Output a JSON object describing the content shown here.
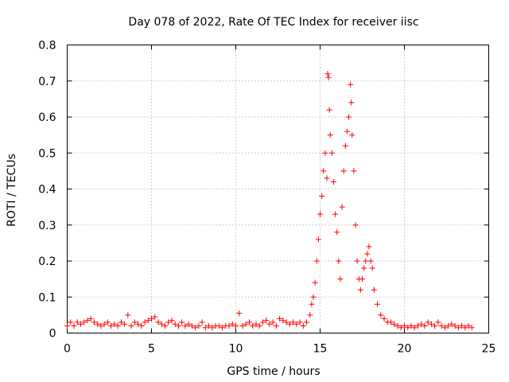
{
  "chart_data": {
    "type": "scatter",
    "title": "Day 078 of 2022, Rate Of TEC Index for receiver iisc",
    "xlabel": "GPS time / hours",
    "ylabel": "ROTI / TECUs",
    "xlim": [
      0,
      25
    ],
    "ylim": [
      0,
      0.8
    ],
    "xticks": [
      "0",
      "5",
      "10",
      "15",
      "20",
      "25"
    ],
    "yticks": [
      "0",
      "0.1",
      "0.2",
      "0.3",
      "0.4",
      "0.5",
      "0.6",
      "0.7",
      "0.8"
    ],
    "grid": true,
    "marker": "+",
    "color": "#ff0000",
    "series": [
      {
        "name": "ROTI",
        "points": [
          [
            0.0,
            0.02
          ],
          [
            0.2,
            0.03
          ],
          [
            0.4,
            0.02
          ],
          [
            0.6,
            0.03
          ],
          [
            0.8,
            0.025
          ],
          [
            1.0,
            0.03
          ],
          [
            1.2,
            0.035
          ],
          [
            1.4,
            0.04
          ],
          [
            1.6,
            0.03
          ],
          [
            1.8,
            0.025
          ],
          [
            2.0,
            0.02
          ],
          [
            2.2,
            0.025
          ],
          [
            2.4,
            0.03
          ],
          [
            2.6,
            0.02
          ],
          [
            2.8,
            0.025
          ],
          [
            3.0,
            0.02
          ],
          [
            3.2,
            0.03
          ],
          [
            3.4,
            0.025
          ],
          [
            3.6,
            0.05
          ],
          [
            3.8,
            0.02
          ],
          [
            4.0,
            0.03
          ],
          [
            4.2,
            0.025
          ],
          [
            4.4,
            0.02
          ],
          [
            4.6,
            0.03
          ],
          [
            4.8,
            0.035
          ],
          [
            5.0,
            0.04
          ],
          [
            5.2,
            0.045
          ],
          [
            5.4,
            0.03
          ],
          [
            5.6,
            0.025
          ],
          [
            5.8,
            0.02
          ],
          [
            6.0,
            0.03
          ],
          [
            6.2,
            0.035
          ],
          [
            6.4,
            0.025
          ],
          [
            6.6,
            0.02
          ],
          [
            6.8,
            0.03
          ],
          [
            7.0,
            0.02
          ],
          [
            7.2,
            0.025
          ],
          [
            7.4,
            0.02
          ],
          [
            7.6,
            0.015
          ],
          [
            7.8,
            0.02
          ],
          [
            8.0,
            0.03
          ],
          [
            8.2,
            0.015
          ],
          [
            8.4,
            0.02
          ],
          [
            8.6,
            0.015
          ],
          [
            8.8,
            0.02
          ],
          [
            9.0,
            0.02
          ],
          [
            9.2,
            0.015
          ],
          [
            9.4,
            0.02
          ],
          [
            9.6,
            0.02
          ],
          [
            9.8,
            0.025
          ],
          [
            10.0,
            0.02
          ],
          [
            10.2,
            0.055
          ],
          [
            10.4,
            0.02
          ],
          [
            10.6,
            0.025
          ],
          [
            10.8,
            0.03
          ],
          [
            11.0,
            0.02
          ],
          [
            11.2,
            0.025
          ],
          [
            11.4,
            0.02
          ],
          [
            11.6,
            0.03
          ],
          [
            11.8,
            0.035
          ],
          [
            12.0,
            0.025
          ],
          [
            12.2,
            0.03
          ],
          [
            12.4,
            0.02
          ],
          [
            12.6,
            0.04
          ],
          [
            12.8,
            0.035
          ],
          [
            13.0,
            0.03
          ],
          [
            13.2,
            0.025
          ],
          [
            13.4,
            0.03
          ],
          [
            13.6,
            0.025
          ],
          [
            13.8,
            0.03
          ],
          [
            14.0,
            0.02
          ],
          [
            14.2,
            0.03
          ],
          [
            14.4,
            0.05
          ],
          [
            14.5,
            0.08
          ],
          [
            14.6,
            0.1
          ],
          [
            14.7,
            0.14
          ],
          [
            14.8,
            0.2
          ],
          [
            14.9,
            0.26
          ],
          [
            15.0,
            0.33
          ],
          [
            15.1,
            0.38
          ],
          [
            15.2,
            0.45
          ],
          [
            15.3,
            0.5
          ],
          [
            15.4,
            0.43
          ],
          [
            15.45,
            0.72
          ],
          [
            15.5,
            0.71
          ],
          [
            15.55,
            0.62
          ],
          [
            15.6,
            0.55
          ],
          [
            15.7,
            0.5
          ],
          [
            15.8,
            0.42
          ],
          [
            15.9,
            0.33
          ],
          [
            16.0,
            0.28
          ],
          [
            16.1,
            0.2
          ],
          [
            16.2,
            0.15
          ],
          [
            16.3,
            0.35
          ],
          [
            16.4,
            0.45
          ],
          [
            16.5,
            0.52
          ],
          [
            16.6,
            0.56
          ],
          [
            16.7,
            0.6
          ],
          [
            16.8,
            0.69
          ],
          [
            16.85,
            0.64
          ],
          [
            16.9,
            0.55
          ],
          [
            17.0,
            0.45
          ],
          [
            17.1,
            0.3
          ],
          [
            17.2,
            0.2
          ],
          [
            17.3,
            0.15
          ],
          [
            17.4,
            0.12
          ],
          [
            17.5,
            0.15
          ],
          [
            17.6,
            0.18
          ],
          [
            17.7,
            0.2
          ],
          [
            17.8,
            0.22
          ],
          [
            17.9,
            0.24
          ],
          [
            18.0,
            0.2
          ],
          [
            18.1,
            0.18
          ],
          [
            18.2,
            0.12
          ],
          [
            18.4,
            0.08
          ],
          [
            18.6,
            0.05
          ],
          [
            18.8,
            0.04
          ],
          [
            19.0,
            0.03
          ],
          [
            19.2,
            0.03
          ],
          [
            19.4,
            0.025
          ],
          [
            19.6,
            0.02
          ],
          [
            19.8,
            0.015
          ],
          [
            20.0,
            0.02
          ],
          [
            20.2,
            0.015
          ],
          [
            20.4,
            0.02
          ],
          [
            20.6,
            0.015
          ],
          [
            20.8,
            0.02
          ],
          [
            21.0,
            0.025
          ],
          [
            21.2,
            0.02
          ],
          [
            21.4,
            0.03
          ],
          [
            21.6,
            0.025
          ],
          [
            21.8,
            0.02
          ],
          [
            22.0,
            0.03
          ],
          [
            22.2,
            0.02
          ],
          [
            22.4,
            0.015
          ],
          [
            22.6,
            0.02
          ],
          [
            22.8,
            0.025
          ],
          [
            23.0,
            0.02
          ],
          [
            23.2,
            0.015
          ],
          [
            23.4,
            0.02
          ],
          [
            23.6,
            0.015
          ],
          [
            23.8,
            0.02
          ],
          [
            24.0,
            0.015
          ]
        ]
      }
    ]
  }
}
